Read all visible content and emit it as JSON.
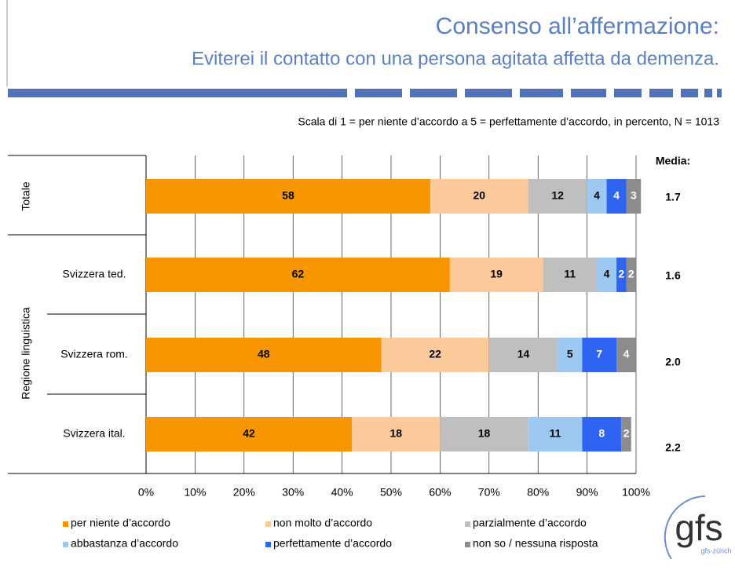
{
  "chart_data": {
    "type": "stacked_bar_horizontal",
    "title": "Consenso all’affermazione:",
    "subtitle": "Eviterei il contatto con una persona agitata affetta da demenza.",
    "note": "Scala di 1 = per niente d’accordo a 5 = perfettamente d’accordo, in percento, N = 1013",
    "group_label": "Regione linguistica",
    "categories": [
      "Totale",
      "Svizzera ted.",
      "Svizzera rom.",
      "Svizzera ital."
    ],
    "series": [
      {
        "name": "per niente d’accordo",
        "color": "#f79600",
        "label_color": "#000000",
        "values": [
          58,
          62,
          48,
          42
        ]
      },
      {
        "name": "non molto d’accordo",
        "color": "#fcc99a",
        "label_color": "#000000",
        "values": [
          20,
          19,
          22,
          18
        ]
      },
      {
        "name": "parzialmente d’accordo",
        "color": "#bfbfbf",
        "label_color": "#000000",
        "values": [
          12,
          11,
          14,
          18
        ]
      },
      {
        "name": "abbastanza d’accordo",
        "color": "#9dc8f2",
        "label_color": "#000000",
        "values": [
          4,
          4,
          5,
          11
        ]
      },
      {
        "name": "perfettamente d’accordo",
        "color": "#2f63f2",
        "label_color": "#ffffff",
        "values": [
          4,
          2,
          7,
          8
        ]
      },
      {
        "name": "non so / nessuna risposta",
        "color": "#8c8c8c",
        "label_color": "#ffffff",
        "values": [
          3,
          2,
          4,
          2
        ]
      }
    ],
    "media": {
      "label": "Media:",
      "values": [
        1.7,
        1.6,
        2.0,
        2.2
      ],
      "value_labels": [
        "1.7",
        "1.6",
        "2.0",
        "2.2"
      ]
    },
    "xlim": [
      0,
      100
    ],
    "xticks": [
      {
        "value": 0,
        "label": "0%"
      },
      {
        "value": 10,
        "label": "10%"
      },
      {
        "value": 20,
        "label": "20%"
      },
      {
        "value": 30,
        "label": "30%"
      },
      {
        "value": 40,
        "label": "40%"
      },
      {
        "value": 50,
        "label": "50%"
      },
      {
        "value": 60,
        "label": "60%"
      },
      {
        "value": 70,
        "label": "70%"
      },
      {
        "value": 80,
        "label": "80%"
      },
      {
        "value": 90,
        "label": "90%"
      },
      {
        "value": 100,
        "label": "100%"
      }
    ],
    "grid": true,
    "legend": "bottom",
    "logo": {
      "text": "gfs",
      "subtext": "gfs-zürich"
    }
  }
}
